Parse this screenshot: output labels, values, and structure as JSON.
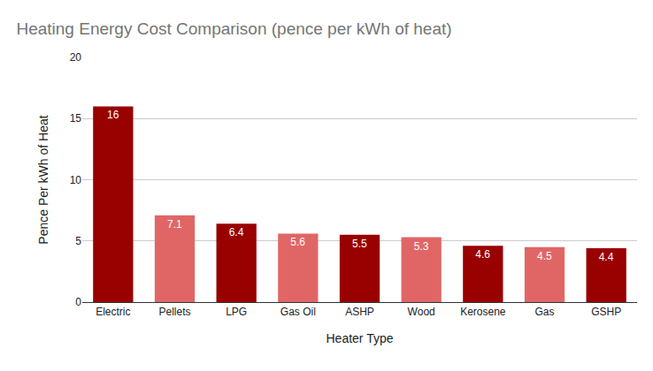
{
  "chart_data": {
    "type": "bar",
    "title": "Heating Energy Cost Comparison (pence per kWh of heat)",
    "x_label": "Heater Type",
    "y_label": "Pence Per kWh of Heat",
    "categories": [
      "Electric",
      "Pellets",
      "LPG",
      "Gas Oil",
      "ASHP",
      "Wood",
      "Kerosene",
      "Gas",
      "GSHP"
    ],
    "values": [
      16,
      7.1,
      6.4,
      5.6,
      5.5,
      5.3,
      4.6,
      4.5,
      4.4
    ],
    "colors": [
      "#990000",
      "#e06666",
      "#990000",
      "#e06666",
      "#990000",
      "#e06666",
      "#990000",
      "#e06666",
      "#990000"
    ],
    "ylim": [
      0,
      20
    ],
    "yticks": [
      0,
      5,
      10,
      15,
      20
    ],
    "grid": true,
    "data_labels": true
  }
}
